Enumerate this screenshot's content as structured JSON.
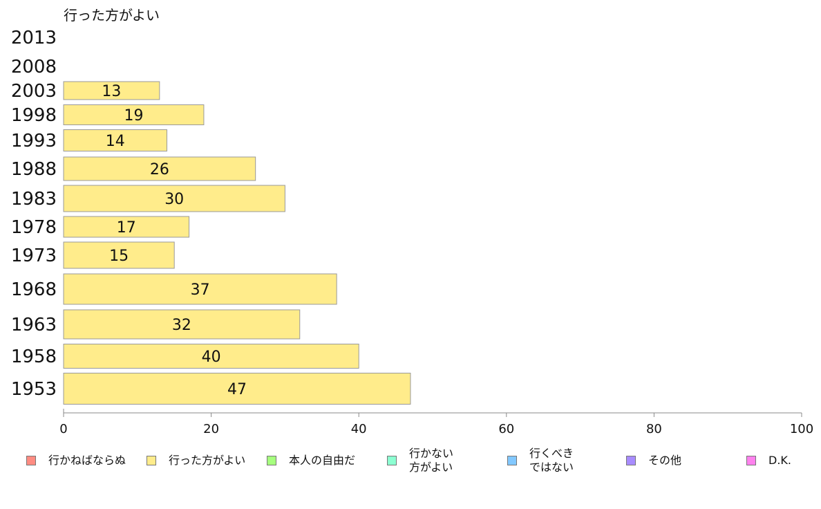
{
  "chart_data": {
    "type": "bar",
    "orientation": "horizontal",
    "title": "行った方がよい",
    "xlabel": "",
    "ylabel": "",
    "xlim": [
      0,
      100
    ],
    "x_ticks": [
      "0",
      "20",
      "40",
      "60",
      "80",
      "100"
    ],
    "categories": [
      "2013",
      "2008",
      "2003",
      "1998",
      "1993",
      "1988",
      "1983",
      "1978",
      "1973",
      "1968",
      "1963",
      "1958",
      "1953"
    ],
    "series": [
      {
        "name": "行った方がよい",
        "color": "#ffec8b",
        "values": [
          null,
          null,
          13,
          19,
          14,
          26,
          30,
          17,
          15,
          37,
          32,
          40,
          47
        ],
        "labels": [
          "",
          "",
          "13",
          "19",
          "14",
          "26",
          "30",
          "17",
          "15",
          "37",
          "32",
          "40",
          "47"
        ]
      }
    ],
    "legend_position": "bottom",
    "legend": [
      {
        "label": "行かねばならぬ",
        "color": "#ff8c82"
      },
      {
        "label": "行った方がよい",
        "color": "#ffec8b"
      },
      {
        "label": "本人の自由だ",
        "color": "#a6ff7e"
      },
      {
        "label": "行かない\n方がよい",
        "color": "#8cffd2"
      },
      {
        "label": "行くべき\nではない",
        "color": "#82c8ff"
      },
      {
        "label": "その他",
        "color": "#a88cff"
      },
      {
        "label": "D.K.",
        "color": "#ff82ee"
      }
    ],
    "grid": false
  }
}
